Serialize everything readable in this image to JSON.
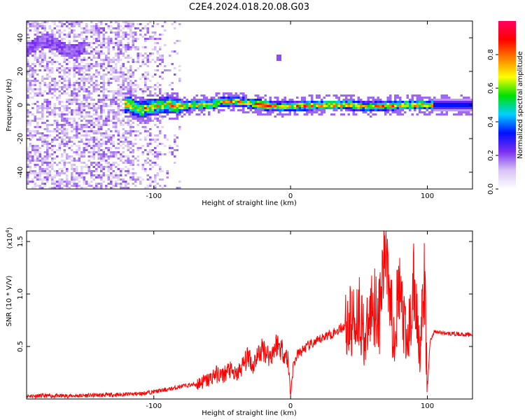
{
  "title": "C2E4.2024.018.20.08.G03",
  "chart_data": [
    {
      "type": "heatmap",
      "xlabel": "Height of straight line (km)",
      "ylabel": "Frequency (Hz)",
      "xlim": [
        -193,
        133
      ],
      "ylim": [
        -50,
        50
      ],
      "xticks": [
        -100,
        0,
        100
      ],
      "yticks": [
        40,
        20,
        0,
        -20,
        -40
      ],
      "yticklabels": [
        "40",
        "20",
        "0",
        "-20",
        "-40"
      ],
      "grid": false,
      "colorbar": {
        "label": "Normalized spectral amplitude",
        "range": [
          0,
          1
        ],
        "ticks": [
          0.0,
          0.2,
          0.4,
          0.6,
          0.8
        ],
        "ticklabels": [
          "0.0",
          "0.2",
          "0.4",
          "0.6",
          "0.8"
        ],
        "colormap": [
          "#ffffff",
          "#d8c4f4",
          "#7a2ff0",
          "#0010ff",
          "#00d0ff",
          "#00e000",
          "#ffff00",
          "#ff8000",
          "#ff0000",
          "#ff0060"
        ]
      },
      "ridge": [
        {
          "x": -120,
          "y": 1
        },
        {
          "x": -110,
          "y": -3
        },
        {
          "x": -100,
          "y": -1
        },
        {
          "x": -90,
          "y": 0
        },
        {
          "x": -80,
          "y": -1
        },
        {
          "x": -70,
          "y": 0
        },
        {
          "x": -60,
          "y": 0
        },
        {
          "x": -50,
          "y": 2
        },
        {
          "x": -40,
          "y": 2
        },
        {
          "x": -30,
          "y": 1
        },
        {
          "x": -20,
          "y": 0
        },
        {
          "x": -10,
          "y": -1
        },
        {
          "x": 0,
          "y": -1
        },
        {
          "x": 20,
          "y": 0
        },
        {
          "x": 40,
          "y": 0
        },
        {
          "x": 60,
          "y": -1
        },
        {
          "x": 80,
          "y": 0
        },
        {
          "x": 100,
          "y": 0
        },
        {
          "x": 133,
          "y": 0
        }
      ],
      "features": [
        {
          "x_range": [
            -193,
            -150
          ],
          "y": 35,
          "note": "high-frequency band"
        },
        {
          "x": -8,
          "y": 28,
          "note": "isolated spot"
        }
      ]
    },
    {
      "type": "line",
      "xlabel": "Height of straight line (km)",
      "ylabel": "SNR (10 * V/V)",
      "scale_note": "(x10",
      "scale_exp": "4",
      "xlim": [
        -193,
        133
      ],
      "ylim": [
        0,
        1.6
      ],
      "xticks": [
        -100,
        0,
        100
      ],
      "yticks": [
        0.5,
        1.0,
        1.5
      ],
      "yticklabels": [
        "0.5",
        "1.0",
        "1.5"
      ],
      "series": [
        {
          "color": "#ff0000",
          "x": [
            -193,
            -160,
            -130,
            -110,
            -100,
            -90,
            -80,
            -70,
            -60,
            -55,
            -50,
            -45,
            -40,
            -35,
            -30,
            -28,
            -25,
            -20,
            -15,
            -10,
            -5,
            -2,
            0,
            2,
            5,
            10,
            15,
            20,
            25,
            30,
            35,
            40,
            45,
            50,
            55,
            60,
            65,
            70,
            75,
            80,
            85,
            90,
            95,
            98,
            100,
            102,
            105,
            110,
            120,
            133
          ],
          "y": [
            0.03,
            0.03,
            0.04,
            0.05,
            0.07,
            0.09,
            0.12,
            0.14,
            0.18,
            0.24,
            0.22,
            0.28,
            0.22,
            0.32,
            0.42,
            0.3,
            0.4,
            0.48,
            0.4,
            0.53,
            0.45,
            0.38,
            0.05,
            0.32,
            0.42,
            0.48,
            0.52,
            0.55,
            0.6,
            0.62,
            0.66,
            0.7,
            0.73,
            0.85,
            0.55,
            0.95,
            0.8,
            1.55,
            0.62,
            1.05,
            0.45,
            1.05,
            0.5,
            1.1,
            0.08,
            0.55,
            0.64,
            0.63,
            0.62,
            0.61
          ]
        }
      ]
    }
  ]
}
